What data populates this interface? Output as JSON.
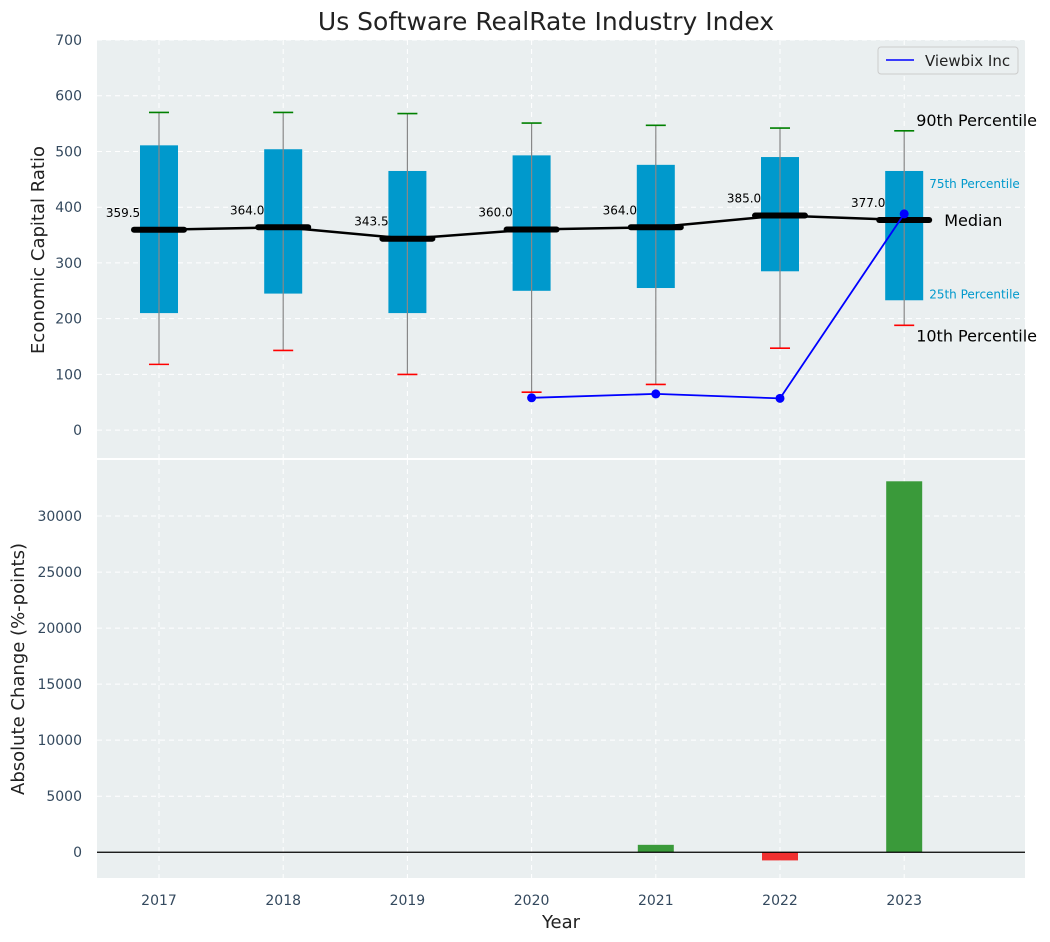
{
  "chart_data": [
    {
      "type": "box",
      "title": "Us Software RealRate Industry Index",
      "ylabel": "Economic Capital Ratio",
      "ylim": [
        -50,
        700
      ],
      "yticks": [
        0,
        100,
        200,
        300,
        400,
        500,
        600,
        700
      ],
      "grid": true,
      "legend": {
        "position": "top-right",
        "entries": [
          "Viewbix Inc"
        ]
      },
      "categories": [
        "2017",
        "2018",
        "2019",
        "2020",
        "2021",
        "2022",
        "2023"
      ],
      "p10": [
        118,
        143,
        100,
        68,
        82,
        147,
        188
      ],
      "q1": [
        210,
        245,
        210,
        250,
        255,
        285,
        233
      ],
      "median": [
        359.5,
        364.0,
        343.5,
        360.0,
        364.0,
        385.0,
        377.0
      ],
      "median_labels": [
        "359.5",
        "364.0",
        "343.5",
        "360.0",
        "364.0",
        "385.0",
        "377.0"
      ],
      "q3": [
        511,
        504,
        465,
        493,
        476,
        490,
        465
      ],
      "p90": [
        570,
        570,
        568,
        551,
        547,
        542,
        537
      ],
      "series": [
        {
          "name": "Viewbix Inc",
          "x": [
            "2020",
            "2021",
            "2022",
            "2023"
          ],
          "values": [
            58,
            65,
            57,
            388
          ],
          "color": "#0000ff"
        }
      ],
      "annotations": {
        "p90": "90th Percentile",
        "q3": "75th Percentile",
        "median": "Median",
        "q1": "25th Percentile",
        "p10": "10th Percentile"
      }
    },
    {
      "type": "bar",
      "xlabel": "Year",
      "ylabel": "Absolute Change (%-points)",
      "ylim": [
        -2300,
        35000
      ],
      "yticks": [
        0,
        5000,
        10000,
        15000,
        20000,
        25000,
        30000
      ],
      "grid": true,
      "categories": [
        "2017",
        "2018",
        "2019",
        "2020",
        "2021",
        "2022",
        "2023"
      ],
      "values": [
        0,
        0,
        0,
        0,
        660,
        -730,
        33100
      ]
    }
  ],
  "colors": {
    "box_fill": "#0099cc",
    "median": "#000000",
    "p90_cap": "#008000",
    "p10_cap": "#ff0000",
    "positive_bar": "#3a9a3a",
    "negative_bar": "#f03030",
    "panel_bg": "#eaeff0",
    "series": "#0000ff"
  }
}
